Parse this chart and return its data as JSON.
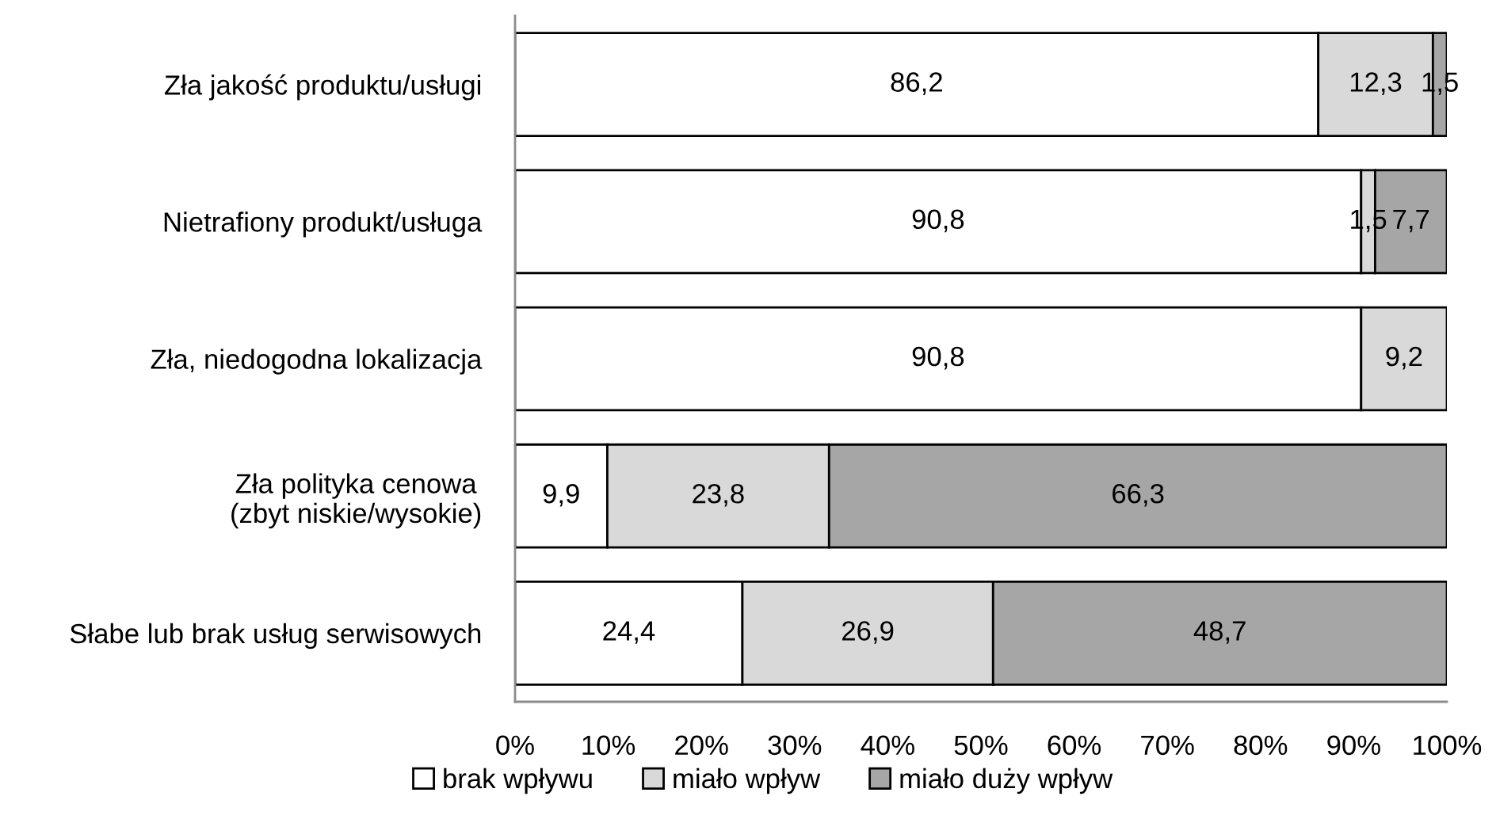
{
  "chart_data": {
    "type": "bar",
    "orientation": "horizontal",
    "stacked": true,
    "categories": [
      "Zła jakość produktu/usługi",
      "Nietrafiony produkt/usługa",
      "Zła, niedogodna lokalizacja",
      "Zła polityka cenowa\n(zbyt niskie/wysokie)",
      "Słabe lub brak usług serwisowych"
    ],
    "series": [
      {
        "name": "brak wpływu",
        "color": "#ffffff",
        "values": [
          86.2,
          90.8,
          90.8,
          9.9,
          24.4
        ],
        "value_labels": [
          "86,2",
          "90,8",
          "90,8",
          "9,9",
          "24,4"
        ]
      },
      {
        "name": "miało wpływ",
        "color": "#d9d9d9",
        "values": [
          12.3,
          1.5,
          9.2,
          23.8,
          26.9
        ],
        "value_labels": [
          "12,3",
          "1,5",
          "9,2",
          "23,8",
          "26,9"
        ]
      },
      {
        "name": "miało duży wpływ",
        "color": "#a6a6a6",
        "values": [
          1.5,
          7.7,
          null,
          66.3,
          48.7
        ],
        "value_labels": [
          "1,5",
          "7,7",
          null,
          "66,3",
          "48,7"
        ]
      }
    ],
    "xlim": [
      0,
      100
    ],
    "xticks": [
      {
        "value": 0,
        "label": "0%"
      },
      {
        "value": 10,
        "label": "10%"
      },
      {
        "value": 20,
        "label": "20%"
      },
      {
        "value": 30,
        "label": "30%"
      },
      {
        "value": 40,
        "label": "40%"
      },
      {
        "value": 50,
        "label": "50%"
      },
      {
        "value": 60,
        "label": "60%"
      },
      {
        "value": 70,
        "label": "70%"
      },
      {
        "value": 80,
        "label": "80%"
      },
      {
        "value": 90,
        "label": "90%"
      },
      {
        "value": 100,
        "label": "100%"
      }
    ],
    "legend": "bottom",
    "grid": false
  }
}
